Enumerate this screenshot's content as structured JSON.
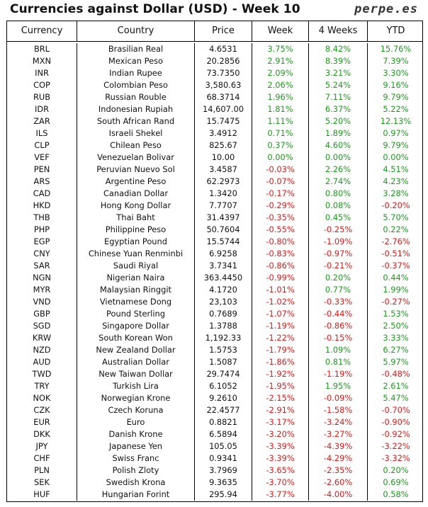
{
  "header": {
    "title": "Currencies against Dollar (USD) - Week 10",
    "brand": "perpe.es"
  },
  "columns": [
    "Currency",
    "Country",
    "Price",
    "Week",
    "4 Weeks",
    "YTD"
  ],
  "colors": {
    "positive": "#1e9a1e",
    "negative": "#e01818"
  },
  "rows": [
    {
      "code": "BRL",
      "country": "Brasilian Real",
      "price": "4.6531",
      "week": "3.75%",
      "w4": "8.42%",
      "ytd": "15.76%"
    },
    {
      "code": "MXN",
      "country": "Mexican Peso",
      "price": "20.2856",
      "week": "2.91%",
      "w4": "8.39%",
      "ytd": "7.39%"
    },
    {
      "code": "INR",
      "country": "Indian Rupee",
      "price": "73.7350",
      "week": "2.09%",
      "w4": "3.21%",
      "ytd": "3.30%"
    },
    {
      "code": "COP",
      "country": "Colombian Peso",
      "price": "3,580.63",
      "week": "2.06%",
      "w4": "5.24%",
      "ytd": "9.16%"
    },
    {
      "code": "RUB",
      "country": "Russian Rouble",
      "price": "68.3714",
      "week": "1.96%",
      "w4": "7.11%",
      "ytd": "9.79%"
    },
    {
      "code": "IDR",
      "country": "Indonesian Rupiah",
      "price": "14,607.00",
      "week": "1.81%",
      "w4": "6.37%",
      "ytd": "5.22%"
    },
    {
      "code": "ZAR",
      "country": "South African Rand",
      "price": "15.7475",
      "week": "1.11%",
      "w4": "5.20%",
      "ytd": "12.13%"
    },
    {
      "code": "ILS",
      "country": "Israeli Shekel",
      "price": "3.4912",
      "week": "0.71%",
      "w4": "1.89%",
      "ytd": "0.97%"
    },
    {
      "code": "CLP",
      "country": "Chilean Peso",
      "price": "825.67",
      "week": "0.37%",
      "w4": "4.60%",
      "ytd": "9.79%"
    },
    {
      "code": "VEF",
      "country": "Venezuelan Bolivar",
      "price": "10.00",
      "week": "0.00%",
      "w4": "0.00%",
      "ytd": "0.00%"
    },
    {
      "code": "PEN",
      "country": "Peruvian Nuevo Sol",
      "price": "3.4587",
      "week": "-0.03%",
      "w4": "2.26%",
      "ytd": "4.51%"
    },
    {
      "code": "ARS",
      "country": "Argentine Peso",
      "price": "62.2973",
      "week": "-0.07%",
      "w4": "2.74%",
      "ytd": "4.23%"
    },
    {
      "code": "CAD",
      "country": "Canadian Dollar",
      "price": "1.3420",
      "week": "-0.17%",
      "w4": "0.80%",
      "ytd": "3.28%"
    },
    {
      "code": "HKD",
      "country": "Hong Kong Dollar",
      "price": "7.7707",
      "week": "-0.29%",
      "w4": "0.08%",
      "ytd": "-0.20%"
    },
    {
      "code": "THB",
      "country": "Thai Baht",
      "price": "31.4397",
      "week": "-0.35%",
      "w4": "0.45%",
      "ytd": "5.70%"
    },
    {
      "code": "PHP",
      "country": "Philippine Peso",
      "price": "50.7604",
      "week": "-0.55%",
      "w4": "-0.25%",
      "ytd": "0.22%"
    },
    {
      "code": "EGP",
      "country": "Egyptian Pound",
      "price": "15.5744",
      "week": "-0.80%",
      "w4": "-1.09%",
      "ytd": "-2.76%"
    },
    {
      "code": "CNY",
      "country": "Chinese Yuan Renminbi",
      "price": "6.9258",
      "week": "-0.83%",
      "w4": "-0.97%",
      "ytd": "-0.51%"
    },
    {
      "code": "SAR",
      "country": "Saudi Riyal",
      "price": "3.7341",
      "week": "-0.86%",
      "w4": "-0.21%",
      "ytd": "-0.37%"
    },
    {
      "code": "NGN",
      "country": "Nigerian Naira",
      "price": "363.4450",
      "week": "-0.99%",
      "w4": "0.20%",
      "ytd": "0.44%"
    },
    {
      "code": "MYR",
      "country": "Malaysian Ringgit",
      "price": "4.1720",
      "week": "-1.01%",
      "w4": "0.77%",
      "ytd": "1.99%"
    },
    {
      "code": "VND",
      "country": "Vietnamese Dong",
      "price": "23,103",
      "week": "-1.02%",
      "w4": "-0.33%",
      "ytd": "-0.27%"
    },
    {
      "code": "GBP",
      "country": "Pound Sterling",
      "price": "0.7689",
      "week": "-1.07%",
      "w4": "-0.44%",
      "ytd": "1.53%"
    },
    {
      "code": "SGD",
      "country": "Singapore Dollar",
      "price": "1.3788",
      "week": "-1.19%",
      "w4": "-0.86%",
      "ytd": "2.50%"
    },
    {
      "code": "KRW",
      "country": "South Korean Won",
      "price": "1,192.33",
      "week": "-1.22%",
      "w4": "-0.15%",
      "ytd": "3.33%"
    },
    {
      "code": "NZD",
      "country": "New Zealand Dollar",
      "price": "1.5753",
      "week": "-1.79%",
      "w4": "1.09%",
      "ytd": "6.27%"
    },
    {
      "code": "AUD",
      "country": "Australian Dollar",
      "price": "1.5087",
      "week": "-1.86%",
      "w4": "0.81%",
      "ytd": "5.97%"
    },
    {
      "code": "TWD",
      "country": "New Taiwan Dollar",
      "price": "29.7474",
      "week": "-1.92%",
      "w4": "-1.19%",
      "ytd": "-0.48%"
    },
    {
      "code": "TRY",
      "country": "Turkish Lira",
      "price": "6.1052",
      "week": "-1.95%",
      "w4": "1.95%",
      "ytd": "2.61%"
    },
    {
      "code": "NOK",
      "country": "Norwegian Krone",
      "price": "9.2610",
      "week": "-2.15%",
      "w4": "-0.09%",
      "ytd": "5.47%"
    },
    {
      "code": "CZK",
      "country": "Czech Koruna",
      "price": "22.4577",
      "week": "-2.91%",
      "w4": "-1.58%",
      "ytd": "-0.70%"
    },
    {
      "code": "EUR",
      "country": "Euro",
      "price": "0.8821",
      "week": "-3.17%",
      "w4": "-3.24%",
      "ytd": "-0.90%"
    },
    {
      "code": "DKK",
      "country": "Danish Krone",
      "price": "6.5894",
      "week": "-3.20%",
      "w4": "-3.27%",
      "ytd": "-0.92%"
    },
    {
      "code": "JPY",
      "country": "Japanese Yen",
      "price": "105.05",
      "week": "-3.39%",
      "w4": "-4.39%",
      "ytd": "-3.22%"
    },
    {
      "code": "CHF",
      "country": "Swiss Franc",
      "price": "0.9341",
      "week": "-3.39%",
      "w4": "-4.29%",
      "ytd": "-3.32%"
    },
    {
      "code": "PLN",
      "country": "Polish Zloty",
      "price": "3.7969",
      "week": "-3.65%",
      "w4": "-2.35%",
      "ytd": "0.20%"
    },
    {
      "code": "SEK",
      "country": "Swedish Krona",
      "price": "9.3635",
      "week": "-3.70%",
      "w4": "-2.60%",
      "ytd": "0.69%"
    },
    {
      "code": "HUF",
      "country": "Hungarian Forint",
      "price": "295.94",
      "week": "-3.77%",
      "w4": "-4.00%",
      "ytd": "0.58%"
    }
  ]
}
